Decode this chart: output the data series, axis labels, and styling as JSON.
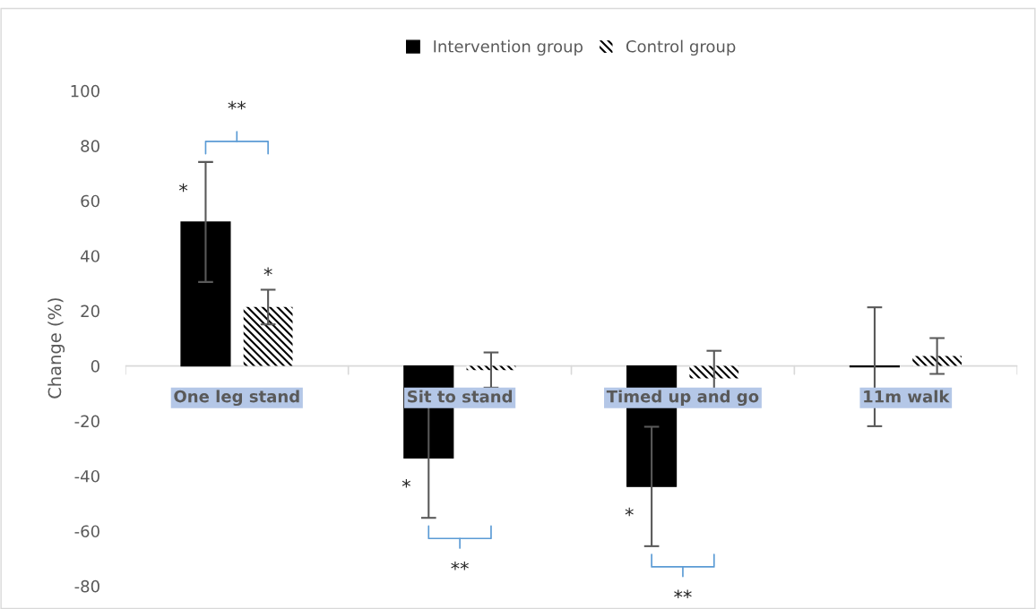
{
  "chart_data": {
    "type": "bar",
    "categories": [
      "One leg stand",
      "Sit to stand",
      "Timed up and go",
      "11m walk"
    ],
    "series": [
      {
        "name": "Intervention group",
        "color": "#000000",
        "values": [
          52.3,
          -33.4,
          -43.8,
          -0.3
        ],
        "errors": [
          21.8,
          21.8,
          21.7,
          21.6
        ]
      },
      {
        "name": "Control group",
        "color": "#000000",
        "values": [
          21.4,
          -1.5,
          -4.5,
          3.6
        ],
        "errors": [
          6.3,
          6.4,
          10,
          6.5
        ]
      }
    ],
    "ylabel": "Change (%)",
    "ylim": [
      -87,
      100
    ],
    "yticks": [
      -80,
      -60,
      -40,
      -20,
      0,
      20,
      40,
      60,
      80,
      100
    ],
    "annotations": [
      "*",
      "*",
      "**",
      "*",
      "**",
      "*",
      "**"
    ],
    "legend": "top",
    "grid": false
  }
}
